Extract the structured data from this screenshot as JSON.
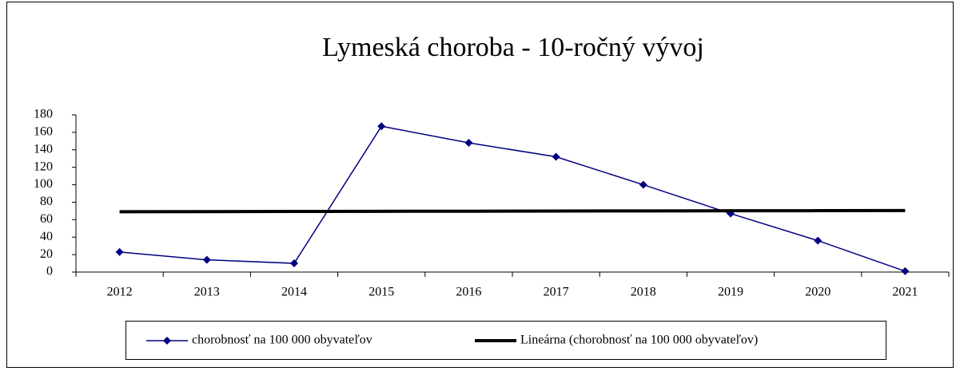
{
  "chart_data": {
    "type": "line",
    "title": "Lymeská choroba - 10-ročný vývoj",
    "categories": [
      "2012",
      "2013",
      "2014",
      "2015",
      "2016",
      "2017",
      "2018",
      "2019",
      "2020",
      "2021"
    ],
    "series": [
      {
        "name": "chorobnosť na 100 000 obyvateľov",
        "color": "#000080",
        "values": [
          23,
          14,
          10,
          167,
          148,
          132,
          100,
          67,
          36,
          1
        ]
      },
      {
        "name": "Lineárna (chorobnosť na 100 000 obyvateľov)",
        "color": "#000000",
        "values": [
          69.1,
          69.2,
          69.4,
          69.6,
          69.7,
          69.9,
          70.0,
          70.2,
          70.3,
          70.5
        ]
      }
    ],
    "ylim": [
      0,
      180
    ],
    "yticks": [
      0,
      20,
      40,
      60,
      80,
      100,
      120,
      140,
      160,
      180
    ],
    "grid": false,
    "legend": "bottom"
  }
}
